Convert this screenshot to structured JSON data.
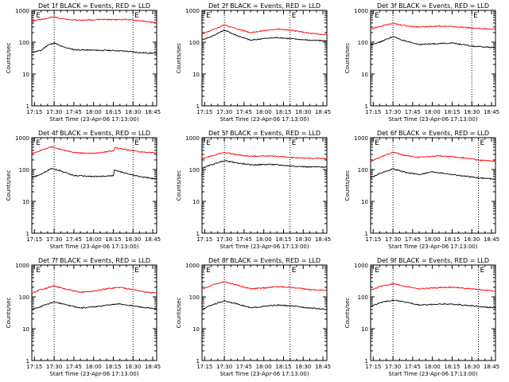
{
  "chart_data": {
    "type": "line",
    "yscale": "log",
    "ylim": [
      1,
      1000
    ],
    "y_ticks": [
      1,
      10,
      100,
      1000
    ],
    "x_ticks": [
      "17:15",
      "17:30",
      "17:45",
      "18:00",
      "18:15",
      "18:30",
      "18:45"
    ],
    "ylabel": "Counts/sec",
    "xlabel": "Start Time (23-Apr-06 17:13:00)",
    "marker_letter": "E",
    "colors": {
      "events": "#000000",
      "lld": "#ff0000"
    },
    "panels": [
      {
        "title": "Det 1f BLACK = Events, RED = LLD",
        "marker_times": [
          "17:15",
          "18:30"
        ],
        "dotted_times": [
          "17:30",
          "18:30"
        ],
        "series": [
          {
            "name": "BLACK = Events",
            "points": [
              [
                "17:13",
                48
              ],
              [
                "17:20",
                55
              ],
              [
                "17:25",
                80
              ],
              [
                "17:30",
                95
              ],
              [
                "17:35",
                75
              ],
              [
                "17:45",
                58
              ],
              [
                "18:00",
                56
              ],
              [
                "18:15",
                55
              ],
              [
                "18:25",
                52
              ],
              [
                "18:35",
                47
              ],
              [
                "18:45",
                45
              ],
              [
                "18:48",
                44
              ]
            ]
          },
          {
            "name": "RED = LLD",
            "points": [
              [
                "17:13",
                460
              ],
              [
                "17:20",
                520
              ],
              [
                "17:30",
                620
              ],
              [
                "17:40",
                510
              ],
              [
                "17:50",
                490
              ],
              [
                "18:05",
                520
              ],
              [
                "18:15",
                510
              ],
              [
                "18:25",
                520
              ],
              [
                "18:35",
                470
              ],
              [
                "18:45",
                420
              ],
              [
                "18:48",
                410
              ]
            ]
          }
        ]
      },
      {
        "title": "Det 2f BLACK = Events, RED = LLD",
        "marker_times": [
          "17:15",
          "18:20"
        ],
        "dotted_times": [
          "17:30",
          "18:20"
        ],
        "series": [
          {
            "name": "BLACK = Events",
            "points": [
              [
                "17:13",
                120
              ],
              [
                "17:20",
                150
              ],
              [
                "17:30",
                240
              ],
              [
                "17:40",
                160
              ],
              [
                "17:50",
                115
              ],
              [
                "18:00",
                130
              ],
              [
                "18:10",
                140
              ],
              [
                "18:20",
                130
              ],
              [
                "18:35",
                115
              ],
              [
                "18:48",
                110
              ]
            ]
          },
          {
            "name": "RED = LLD",
            "points": [
              [
                "17:13",
                180
              ],
              [
                "17:20",
                230
              ],
              [
                "17:30",
                350
              ],
              [
                "17:40",
                260
              ],
              [
                "17:50",
                200
              ],
              [
                "18:00",
                230
              ],
              [
                "18:10",
                260
              ],
              [
                "18:20",
                240
              ],
              [
                "18:35",
                190
              ],
              [
                "18:48",
                170
              ]
            ]
          }
        ]
      },
      {
        "title": "Det 3f BLACK = Events, RED = LLD",
        "marker_times": [
          "17:15",
          "18:30"
        ],
        "dotted_times": [
          "17:30",
          "18:30"
        ],
        "series": [
          {
            "name": "BLACK = Events",
            "points": [
              [
                "17:13",
                85
              ],
              [
                "17:20",
                100
              ],
              [
                "17:30",
                150
              ],
              [
                "17:40",
                105
              ],
              [
                "17:50",
                85
              ],
              [
                "18:05",
                90
              ],
              [
                "18:15",
                95
              ],
              [
                "18:30",
                75
              ],
              [
                "18:40",
                70
              ],
              [
                "18:48",
                68
              ]
            ]
          },
          {
            "name": "RED = LLD",
            "points": [
              [
                "17:13",
                260
              ],
              [
                "17:20",
                310
              ],
              [
                "17:30",
                400
              ],
              [
                "17:40",
                320
              ],
              [
                "17:50",
                300
              ],
              [
                "18:05",
                320
              ],
              [
                "18:15",
                310
              ],
              [
                "18:30",
                280
              ],
              [
                "18:40",
                260
              ],
              [
                "18:48",
                250
              ]
            ]
          }
        ]
      },
      {
        "title": "Det 4f BLACK = Events, RED = LLD",
        "marker_times": [
          "17:15",
          "18:30"
        ],
        "dotted_times": [
          "17:30",
          "18:30"
        ],
        "series": [
          {
            "name": "BLACK = Events",
            "points": [
              [
                "17:13",
                55
              ],
              [
                "17:20",
                70
              ],
              [
                "17:28",
                110
              ],
              [
                "17:35",
                90
              ],
              [
                "17:45",
                65
              ],
              [
                "18:00",
                60
              ],
              [
                "18:10",
                62
              ],
              [
                "18:15",
                65
              ],
              [
                "18:16",
                95
              ],
              [
                "18:25",
                75
              ],
              [
                "18:35",
                60
              ],
              [
                "18:48",
                50
              ]
            ]
          },
          {
            "name": "RED = LLD",
            "points": [
              [
                "17:13",
                320
              ],
              [
                "17:20",
                400
              ],
              [
                "17:28",
                520
              ],
              [
                "17:35",
                430
              ],
              [
                "17:45",
                340
              ],
              [
                "18:00",
                320
              ],
              [
                "18:10",
                360
              ],
              [
                "18:15",
                390
              ],
              [
                "18:16",
                480
              ],
              [
                "18:25",
                420
              ],
              [
                "18:35",
                360
              ],
              [
                "18:48",
                330
              ]
            ]
          }
        ]
      },
      {
        "title": "Det 5f BLACK = Events, RED = LLD",
        "marker_times": [
          "17:15",
          "18:20"
        ],
        "dotted_times": [
          "17:30",
          "18:20"
        ],
        "series": [
          {
            "name": "BLACK = Events",
            "points": [
              [
                "17:13",
                110
              ],
              [
                "17:20",
                140
              ],
              [
                "17:30",
                190
              ],
              [
                "17:40",
                160
              ],
              [
                "17:50",
                140
              ],
              [
                "18:05",
                145
              ],
              [
                "18:20",
                130
              ],
              [
                "18:35",
                120
              ],
              [
                "18:48",
                120
              ]
            ]
          },
          {
            "name": "RED = LLD",
            "points": [
              [
                "17:13",
                220
              ],
              [
                "17:20",
                270
              ],
              [
                "17:30",
                340
              ],
              [
                "17:40",
                290
              ],
              [
                "17:50",
                260
              ],
              [
                "18:05",
                270
              ],
              [
                "18:20",
                240
              ],
              [
                "18:35",
                225
              ],
              [
                "18:48",
                220
              ]
            ]
          }
        ]
      },
      {
        "title": "Det 6f BLACK = Events, RED = LLD",
        "marker_times": [
          "17:15",
          "18:35"
        ],
        "dotted_times": [
          "17:30",
          "18:35"
        ],
        "series": [
          {
            "name": "BLACK = Events",
            "points": [
              [
                "17:13",
                55
              ],
              [
                "17:20",
                75
              ],
              [
                "17:30",
                105
              ],
              [
                "17:40",
                80
              ],
              [
                "17:50",
                70
              ],
              [
                "18:00",
                85
              ],
              [
                "18:10",
                75
              ],
              [
                "18:20",
                65
              ],
              [
                "18:35",
                55
              ],
              [
                "18:48",
                50
              ]
            ]
          },
          {
            "name": "RED = LLD",
            "points": [
              [
                "17:13",
                180
              ],
              [
                "17:20",
                240
              ],
              [
                "17:30",
                350
              ],
              [
                "17:40",
                270
              ],
              [
                "17:50",
                240
              ],
              [
                "18:05",
                270
              ],
              [
                "18:15",
                250
              ],
              [
                "18:25",
                230
              ],
              [
                "18:35",
                200
              ],
              [
                "18:48",
                180
              ]
            ]
          }
        ]
      },
      {
        "title": "Det 7f BLACK = Events, RED = LLD",
        "marker_times": [
          "17:15",
          "18:30"
        ],
        "dotted_times": [
          "17:30",
          "18:30"
        ],
        "series": [
          {
            "name": "BLACK = Events",
            "points": [
              [
                "17:13",
                40
              ],
              [
                "17:20",
                50
              ],
              [
                "17:30",
                70
              ],
              [
                "17:40",
                55
              ],
              [
                "17:50",
                45
              ],
              [
                "18:00",
                48
              ],
              [
                "18:10",
                55
              ],
              [
                "18:20",
                60
              ],
              [
                "18:30",
                52
              ],
              [
                "18:40",
                45
              ],
              [
                "18:48",
                42
              ]
            ]
          },
          {
            "name": "RED = LLD",
            "points": [
              [
                "17:13",
                130
              ],
              [
                "17:20",
                170
              ],
              [
                "17:30",
                220
              ],
              [
                "17:40",
                170
              ],
              [
                "17:50",
                140
              ],
              [
                "18:00",
                150
              ],
              [
                "18:10",
                180
              ],
              [
                "18:20",
                200
              ],
              [
                "18:30",
                170
              ],
              [
                "18:40",
                140
              ],
              [
                "18:48",
                130
              ]
            ]
          }
        ]
      },
      {
        "title": "Det 8f BLACK = Events, RED = LLD",
        "marker_times": [
          "17:15",
          "18:20"
        ],
        "dotted_times": [
          "17:30",
          "18:20"
        ],
        "series": [
          {
            "name": "BLACK = Events",
            "points": [
              [
                "17:13",
                40
              ],
              [
                "17:20",
                55
              ],
              [
                "17:30",
                75
              ],
              [
                "17:40",
                60
              ],
              [
                "17:50",
                45
              ],
              [
                "18:00",
                50
              ],
              [
                "18:10",
                55
              ],
              [
                "18:20",
                52
              ],
              [
                "18:35",
                45
              ],
              [
                "18:48",
                40
              ]
            ]
          },
          {
            "name": "RED = LLD",
            "points": [
              [
                "17:13",
                170
              ],
              [
                "17:20",
                230
              ],
              [
                "17:30",
                300
              ],
              [
                "17:40",
                230
              ],
              [
                "17:50",
                180
              ],
              [
                "18:00",
                190
              ],
              [
                "18:10",
                210
              ],
              [
                "18:20",
                200
              ],
              [
                "18:35",
                170
              ],
              [
                "18:48",
                160
              ]
            ]
          }
        ]
      },
      {
        "title": "Det 9f BLACK = Events, RED = LLD",
        "marker_times": [
          "17:15",
          "18:35"
        ],
        "dotted_times": [
          "17:30",
          "18:35"
        ],
        "series": [
          {
            "name": "BLACK = Events",
            "points": [
              [
                "17:13",
                50
              ],
              [
                "17:20",
                65
              ],
              [
                "17:30",
                80
              ],
              [
                "17:40",
                68
              ],
              [
                "17:50",
                55
              ],
              [
                "18:00",
                58
              ],
              [
                "18:10",
                60
              ],
              [
                "18:20",
                57
              ],
              [
                "18:35",
                50
              ],
              [
                "18:48",
                45
              ]
            ]
          },
          {
            "name": "RED = LLD",
            "points": [
              [
                "17:13",
                160
              ],
              [
                "17:20",
                210
              ],
              [
                "17:30",
                260
              ],
              [
                "17:40",
                210
              ],
              [
                "17:50",
                180
              ],
              [
                "18:00",
                190
              ],
              [
                "18:10",
                200
              ],
              [
                "18:20",
                195
              ],
              [
                "18:35",
                170
              ],
              [
                "18:48",
                150
              ]
            ]
          }
        ]
      }
    ]
  }
}
